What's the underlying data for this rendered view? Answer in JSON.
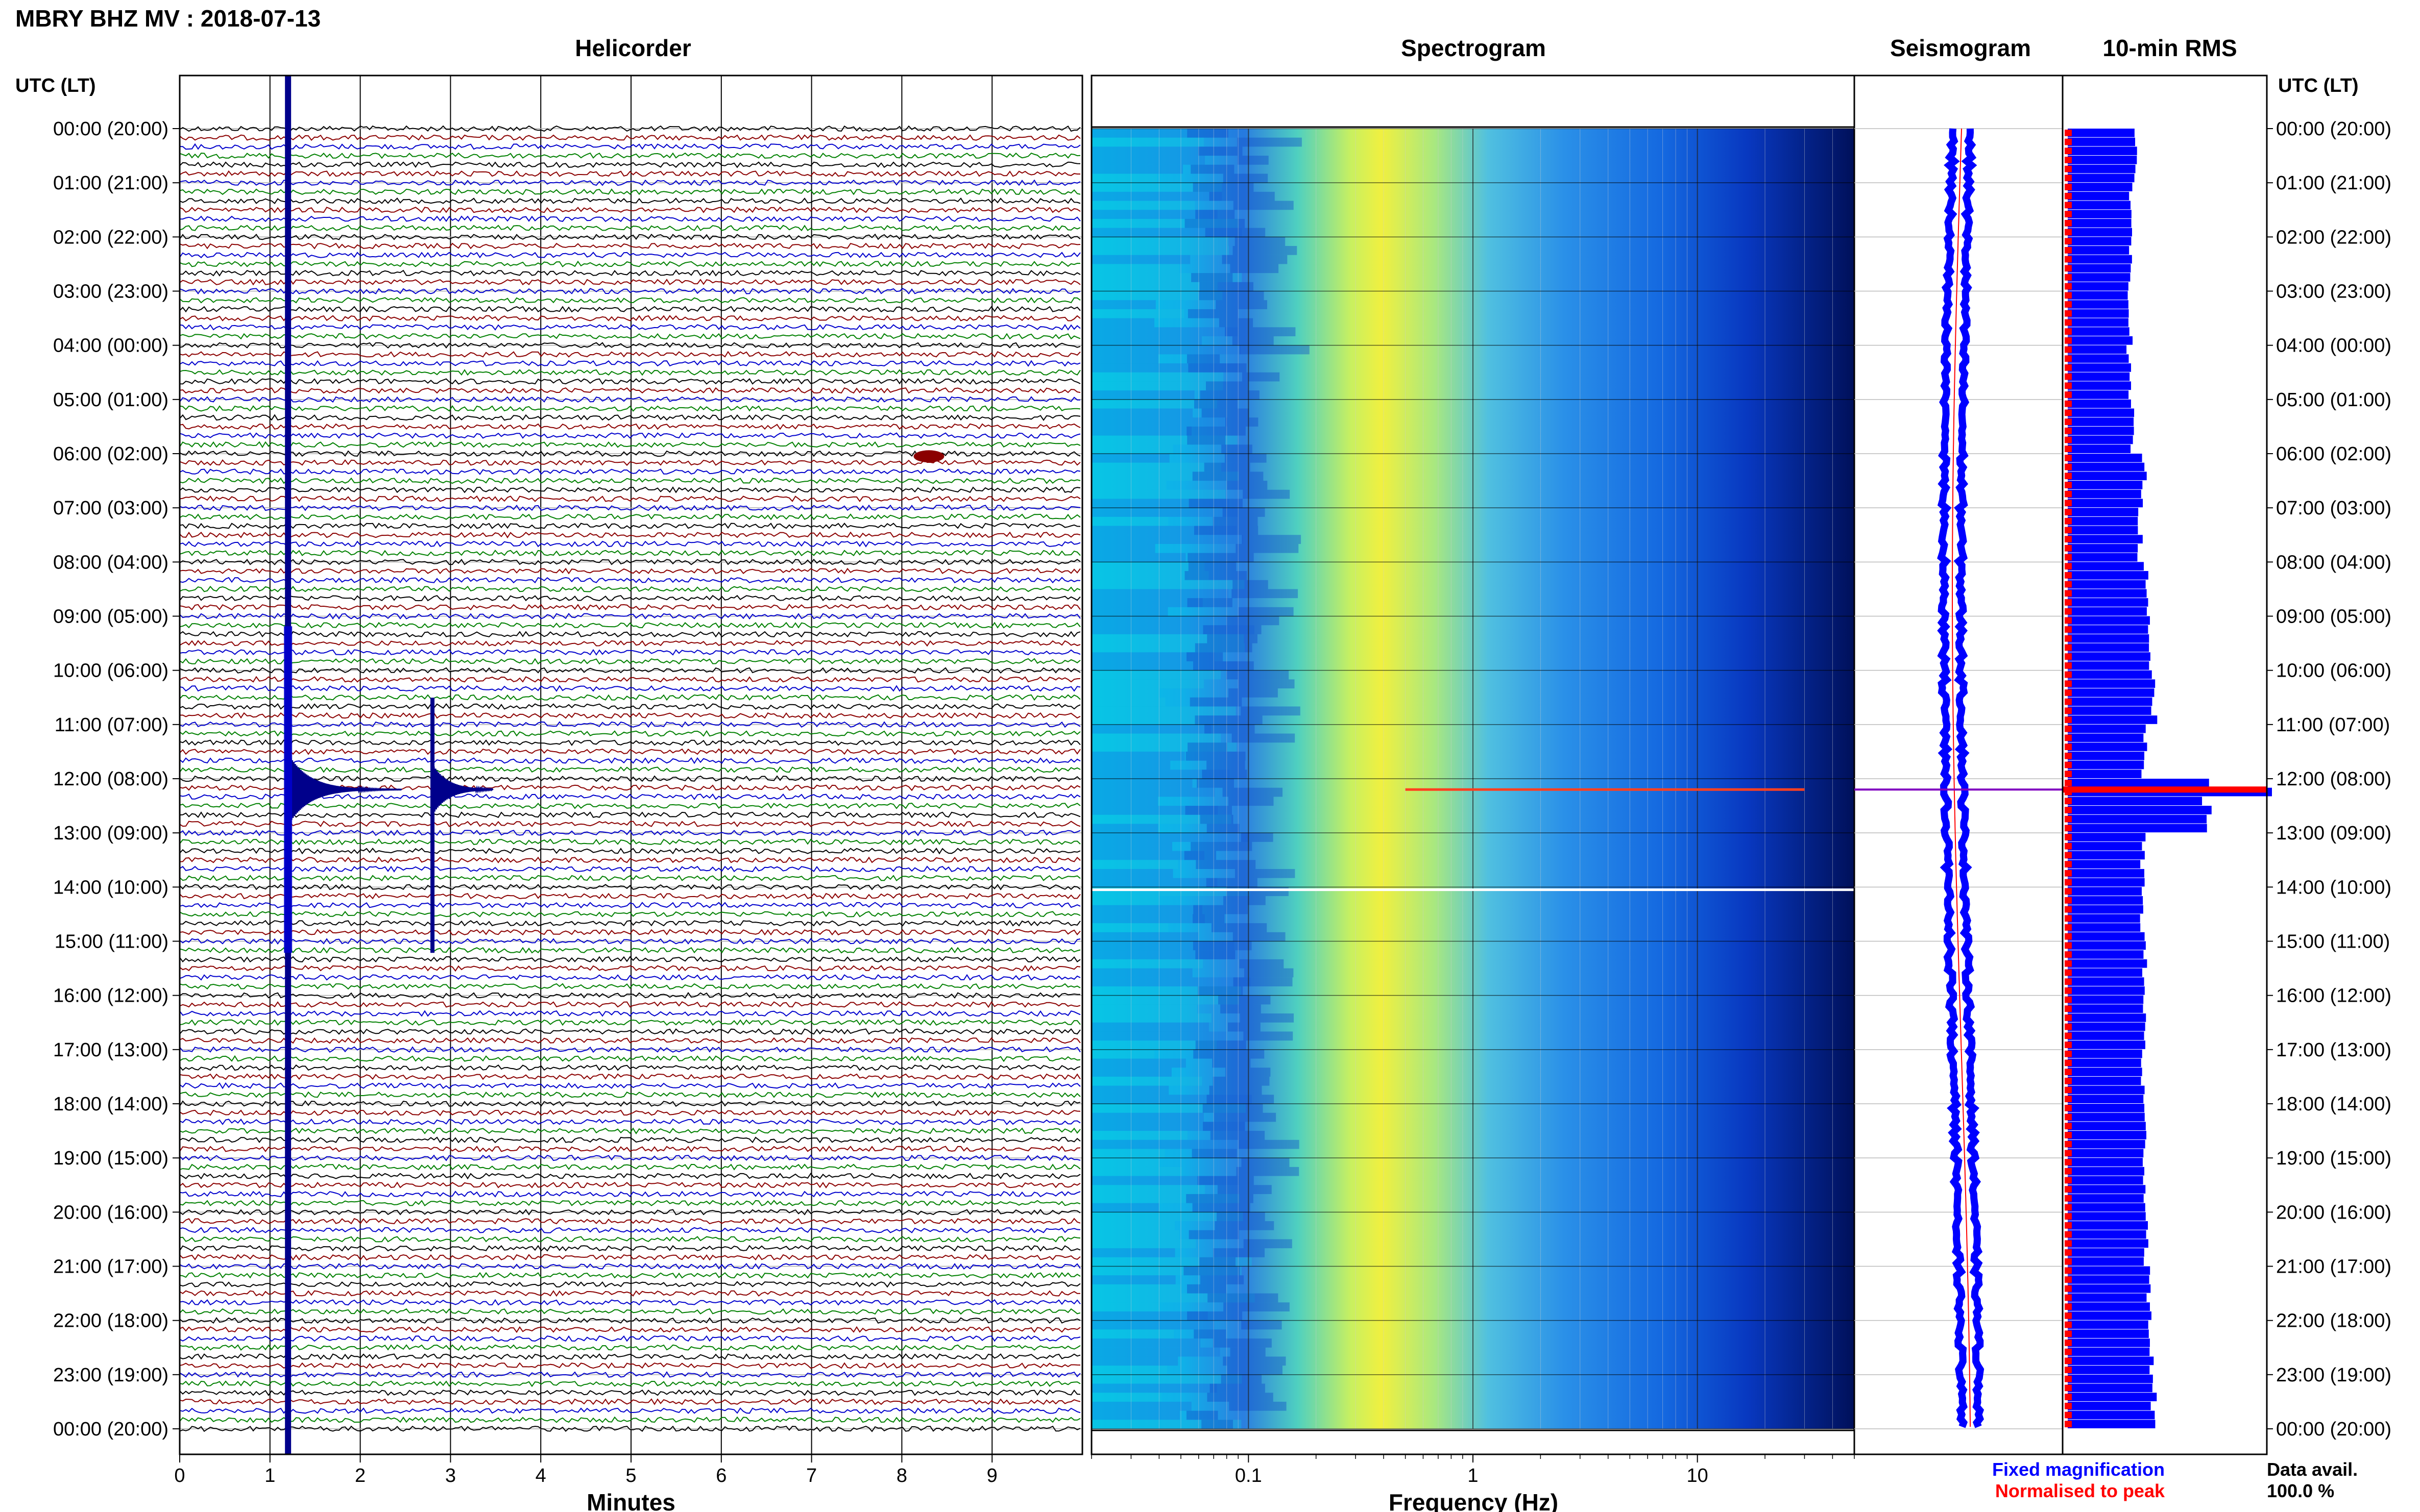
{
  "header": {
    "station": "MBRY BHZ MV : 2018-07-13",
    "utc_label_left": "UTC (LT)",
    "utc_label_right": "UTC (LT)"
  },
  "panels": {
    "helicorder": "Helicorder",
    "spectrogram": "Spectrogram",
    "seismogram": "Seismogram",
    "rms": "10-min RMS"
  },
  "axes": {
    "minutes_label": "Minutes",
    "frequency_label": "Frequency (Hz)",
    "minute_ticks": [
      "0",
      "1",
      "2",
      "3",
      "4",
      "5",
      "6",
      "7",
      "8",
      "9"
    ],
    "frequency_ticks": [
      "0.1",
      "1",
      "10"
    ]
  },
  "time_labels": [
    "00:00 (20:00)",
    "01:00 (21:00)",
    "02:00 (22:00)",
    "03:00 (23:00)",
    "04:00 (00:00)",
    "05:00 (01:00)",
    "06:00 (02:00)",
    "07:00 (03:00)",
    "08:00 (04:00)",
    "09:00 (05:00)",
    "10:00 (06:00)",
    "11:00 (07:00)",
    "12:00 (08:00)",
    "13:00 (09:00)",
    "14:00 (10:00)",
    "15:00 (11:00)",
    "16:00 (12:00)",
    "17:00 (13:00)",
    "18:00 (14:00)",
    "19:00 (15:00)",
    "20:00 (16:00)",
    "21:00 (17:00)",
    "22:00 (18:00)",
    "23:00 (19:00)",
    "00:00 (20:00)"
  ],
  "legend": {
    "fixed": "Fixed magnification",
    "normalised": "Normalised to peak",
    "fixed_color": "#0000ff",
    "normalised_color": "#ff0000"
  },
  "availability": {
    "label": "Data avail.",
    "value": "100.0 %"
  },
  "colors": {
    "trace_black": "#000000",
    "trace_red": "#8b0000",
    "trace_blue": "#0000cd",
    "trace_green": "#008000",
    "rms_bar": "#0000ff",
    "rms_norm": "#ff0000",
    "spec_low": "#00008b",
    "spec_high": "#ffff00"
  },
  "chart_data": {
    "type": "heatmap",
    "title": "MBRY BHZ MV : 2018-07-13",
    "helicorder": {
      "xlabel": "Minutes",
      "xlim": [
        0,
        10
      ],
      "rows_per_hour": 6,
      "events": [
        {
          "utc_hour": 12.2,
          "minute": 1.2,
          "relative_amplitude": 1.0
        },
        {
          "utc_hour": 12.2,
          "minute": 2.8,
          "relative_amplitude": 0.45
        },
        {
          "utc_hour": 6.05,
          "minute": 8.3,
          "relative_amplitude": 0.2
        }
      ]
    },
    "spectrogram": {
      "xlabel": "Frequency (Hz)",
      "xscale": "log",
      "xlim": [
        0.02,
        50
      ],
      "peak_frequency_hz": 0.35
    },
    "rms_10min": {
      "hours": [
        0,
        1,
        2,
        3,
        4,
        5,
        6,
        7,
        8,
        9,
        10,
        11,
        12,
        13,
        14,
        15,
        16,
        17,
        18,
        19,
        20,
        21,
        22,
        23
      ],
      "relative_values": [
        0.48,
        0.46,
        0.45,
        0.45,
        0.44,
        0.46,
        0.55,
        0.52,
        0.56,
        0.58,
        0.62,
        0.55,
        1.0,
        0.54,
        0.54,
        0.55,
        0.55,
        0.54,
        0.55,
        0.56,
        0.57,
        0.58,
        0.6,
        0.62
      ]
    },
    "data_availability_percent": 100.0
  }
}
